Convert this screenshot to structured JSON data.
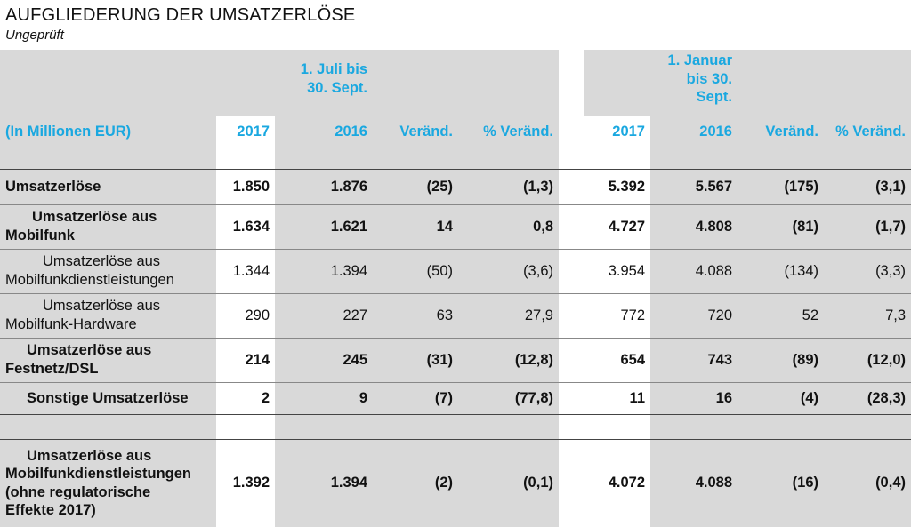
{
  "title": "AUFGLIEDERUNG DER UMSATZERLÖSE",
  "subtitle": "Ungeprüft",
  "header": {
    "period1": [
      "1. Juli bis",
      "30. Sept."
    ],
    "period2": [
      "1. Januar",
      "bis 30.",
      "Sept."
    ],
    "unit_label": "(In Millionen EUR)",
    "cols": [
      "2017",
      "2016",
      "Veränd.",
      "% Veränd.",
      "2017",
      "2016",
      "Veränd.",
      "% Veränd."
    ]
  },
  "rows": [
    {
      "label": [
        "Umsatzerlöse"
      ],
      "values": [
        "1.850",
        "1.876",
        "(25)",
        "(1,3)",
        "5.392",
        "5.567",
        "(175)",
        "(3,1)"
      ]
    },
    {
      "label": [
        "Umsatzerlöse aus",
        "Mobilfunk"
      ],
      "values": [
        "1.634",
        "1.621",
        "14",
        "0,8",
        "4.727",
        "4.808",
        "(81)",
        "(1,7)"
      ]
    },
    {
      "label": [
        "Umsatzerlöse aus",
        "Mobilfunkdienstleistungen"
      ],
      "values": [
        "1.344",
        "1.394",
        "(50)",
        "(3,6)",
        "3.954",
        "4.088",
        "(134)",
        "(3,3)"
      ]
    },
    {
      "label": [
        "Umsatzerlöse aus",
        "Mobilfunk-Hardware"
      ],
      "values": [
        "290",
        "227",
        "63",
        "27,9",
        "772",
        "720",
        "52",
        "7,3"
      ]
    },
    {
      "label": [
        "Umsatzerlöse aus",
        "Festnetz/DSL"
      ],
      "values": [
        "214",
        "245",
        "(31)",
        "(12,8)",
        "654",
        "743",
        "(89)",
        "(12,0)"
      ]
    },
    {
      "label": [
        "Sonstige Umsatzerlöse"
      ],
      "values": [
        "2",
        "9",
        "(7)",
        "(77,8)",
        "11",
        "16",
        "(4)",
        "(28,3)"
      ]
    },
    {
      "label": [
        "Umsatzerlöse aus",
        "Mobilfunkdienstleistungen",
        "(ohne regulatorische",
        "Effekte 2017)"
      ],
      "values": [
        "1.392",
        "1.394",
        "(2)",
        "(0,1)",
        "4.072",
        "4.088",
        "(16)",
        "(0,4)"
      ]
    }
  ]
}
